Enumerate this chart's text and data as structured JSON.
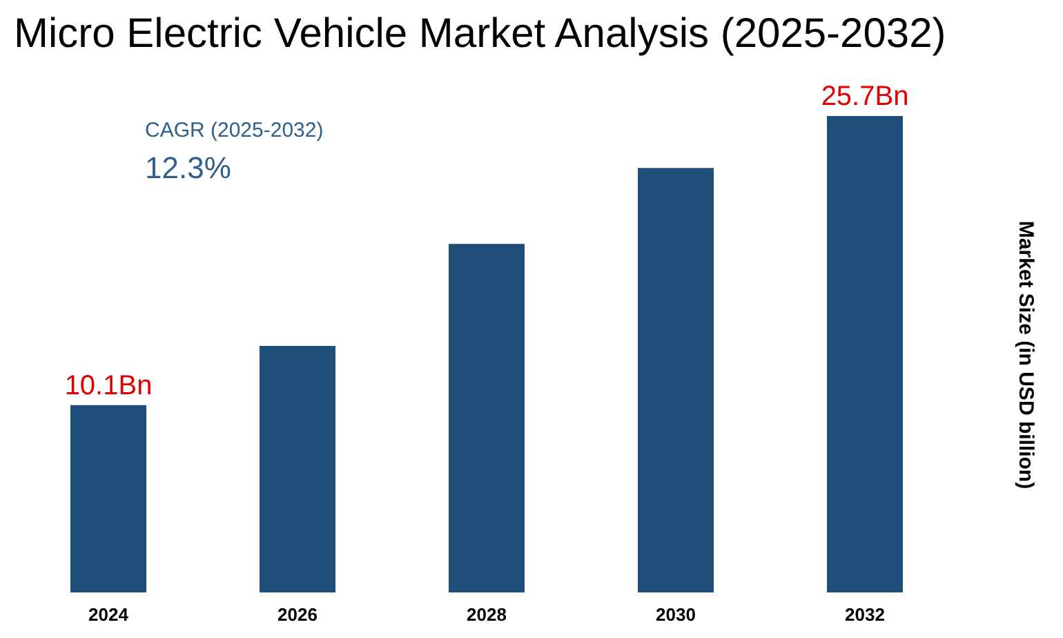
{
  "chart_data": {
    "type": "bar",
    "title": "Micro Electric Vehicle Market Analysis (2025-2032)",
    "ylabel": "Market Size (in USD billion)",
    "categories": [
      "2024",
      "2026",
      "2028",
      "2030",
      "2032"
    ],
    "values": [
      10.1,
      13.3,
      18.8,
      22.9,
      25.7
    ],
    "value_labels": [
      "10.1Bn",
      null,
      null,
      null,
      "25.7Bn"
    ],
    "color": "#1f4e79",
    "annotations": [
      "CAGR (2025-2032)",
      "12.3%"
    ],
    "grid": false,
    "tick_labels": "x"
  }
}
